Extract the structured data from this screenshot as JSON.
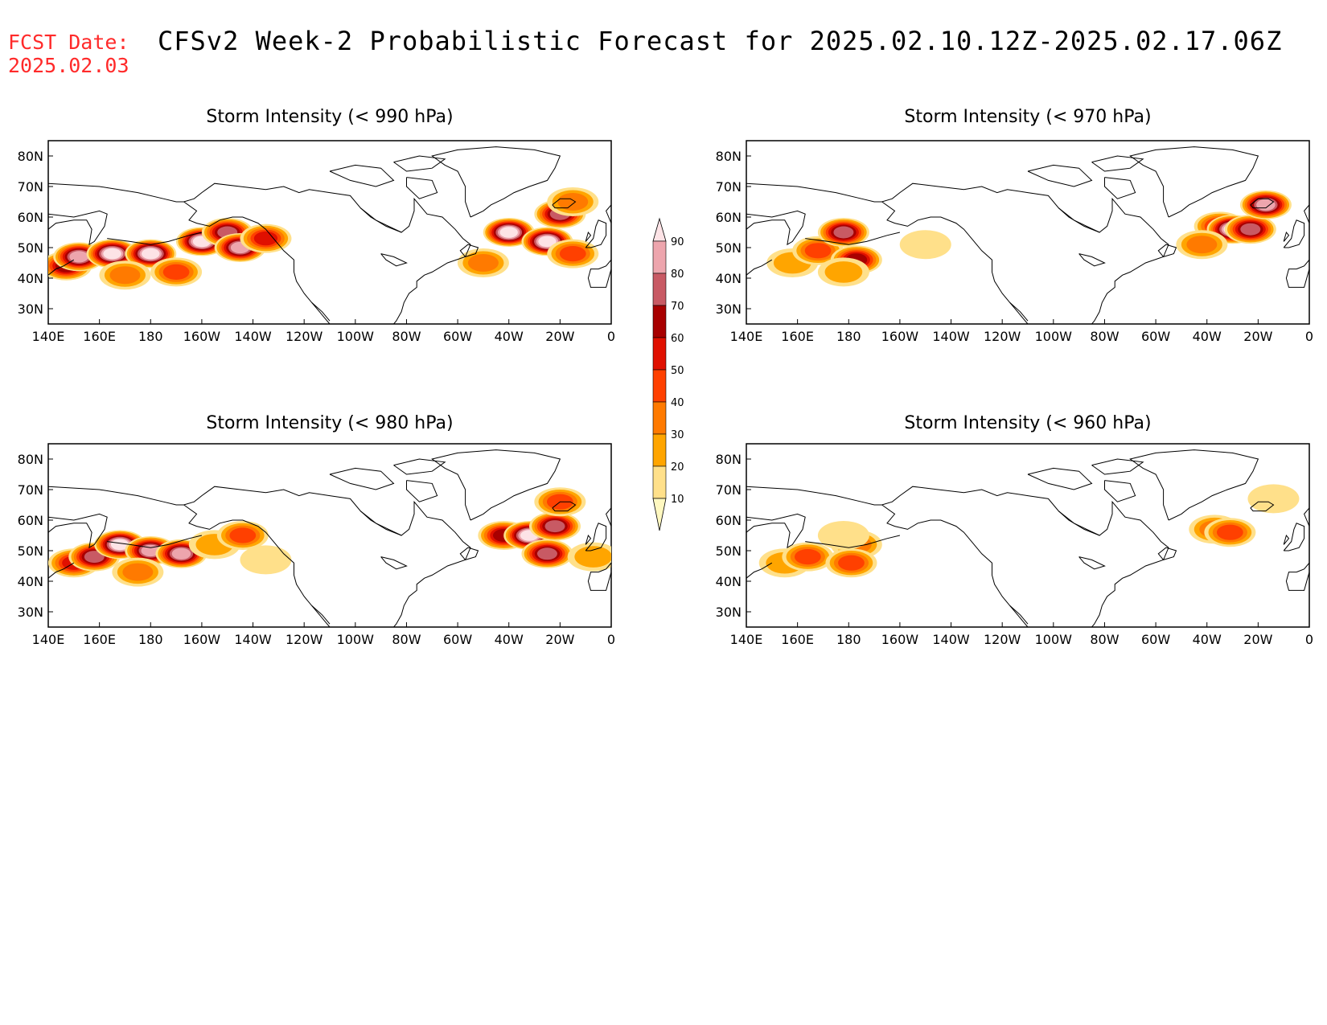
{
  "header": {
    "fcst_label": "FCST Date:",
    "fcst_date": "2025.02.03",
    "title": "CFSv2 Week-2 Probabilistic Forecast for 2025.02.10.12Z-2025.02.17.06Z"
  },
  "lon_ticks": [
    "140E",
    "160E",
    "180",
    "160W",
    "140W",
    "120W",
    "100W",
    "80W",
    "60W",
    "40W",
    "20W",
    "0"
  ],
  "lat_ticks": [
    "80N",
    "70N",
    "60N",
    "50N",
    "40N",
    "30N"
  ],
  "colorbar": {
    "levels": [
      10,
      20,
      30,
      40,
      50,
      60,
      70,
      80,
      90
    ],
    "colors": [
      "#fff8c0",
      "#ffe08a",
      "#ffa500",
      "#ff7a00",
      "#ff4000",
      "#e01000",
      "#a80000",
      "#c85a64",
      "#eda5ad",
      "#fde3e6"
    ]
  },
  "chart_data": [
    {
      "type": "heatmap",
      "title": "Storm Intensity (< 990 hPa)",
      "x_unit": "degrees longitude east (140-360)",
      "y_unit": "degrees latitude",
      "xlim": [
        140,
        360
      ],
      "ylim": [
        25,
        85
      ],
      "values": [
        {
          "lon": 147,
          "lat": 44,
          "value": 60
        },
        {
          "lon": 152,
          "lat": 47,
          "value": 85
        },
        {
          "lon": 165,
          "lat": 48,
          "value": 90
        },
        {
          "lon": 180,
          "lat": 48,
          "value": 90
        },
        {
          "lon": 170,
          "lat": 41,
          "value": 35
        },
        {
          "lon": 190,
          "lat": 42,
          "value": 40
        },
        {
          "lon": 200,
          "lat": 52,
          "value": 90
        },
        {
          "lon": 210,
          "lat": 55,
          "value": 75
        },
        {
          "lon": 215,
          "lat": 50,
          "value": 85
        },
        {
          "lon": 225,
          "lat": 53,
          "value": 50
        },
        {
          "lon": 320,
          "lat": 55,
          "value": 90
        },
        {
          "lon": 335,
          "lat": 52,
          "value": 90
        },
        {
          "lon": 340,
          "lat": 61,
          "value": 70
        },
        {
          "lon": 345,
          "lat": 48,
          "value": 45
        },
        {
          "lon": 310,
          "lat": 45,
          "value": 35
        },
        {
          "lon": 345,
          "lat": 65,
          "value": 30
        }
      ]
    },
    {
      "type": "heatmap",
      "title": "Storm Intensity (< 970 hPa)",
      "x_unit": "degrees longitude east (140-360)",
      "y_unit": "degrees latitude",
      "xlim": [
        140,
        360
      ],
      "ylim": [
        25,
        85
      ],
      "values": [
        {
          "lon": 158,
          "lat": 45,
          "value": 25
        },
        {
          "lon": 168,
          "lat": 49,
          "value": 45
        },
        {
          "lon": 178,
          "lat": 55,
          "value": 70
        },
        {
          "lon": 183,
          "lat": 46,
          "value": 60
        },
        {
          "lon": 178,
          "lat": 42,
          "value": 20
        },
        {
          "lon": 210,
          "lat": 51,
          "value": 15
        },
        {
          "lon": 325,
          "lat": 57,
          "value": 55
        },
        {
          "lon": 330,
          "lat": 56,
          "value": 90
        },
        {
          "lon": 337,
          "lat": 56,
          "value": 75
        },
        {
          "lon": 343,
          "lat": 64,
          "value": 80
        },
        {
          "lon": 318,
          "lat": 51,
          "value": 30
        }
      ]
    },
    {
      "type": "heatmap",
      "title": "Storm Intensity (< 980 hPa)",
      "x_unit": "degrees longitude east (140-360)",
      "y_unit": "degrees latitude",
      "xlim": [
        140,
        360
      ],
      "ylim": [
        25,
        85
      ],
      "values": [
        {
          "lon": 150,
          "lat": 46,
          "value": 50
        },
        {
          "lon": 158,
          "lat": 48,
          "value": 70
        },
        {
          "lon": 168,
          "lat": 52,
          "value": 90
        },
        {
          "lon": 180,
          "lat": 50,
          "value": 85
        },
        {
          "lon": 192,
          "lat": 49,
          "value": 80
        },
        {
          "lon": 175,
          "lat": 43,
          "value": 30
        },
        {
          "lon": 205,
          "lat": 52,
          "value": 25
        },
        {
          "lon": 216,
          "lat": 55,
          "value": 45
        },
        {
          "lon": 225,
          "lat": 47,
          "value": 15
        },
        {
          "lon": 318,
          "lat": 55,
          "value": 60
        },
        {
          "lon": 328,
          "lat": 55,
          "value": 90
        },
        {
          "lon": 338,
          "lat": 58,
          "value": 75
        },
        {
          "lon": 335,
          "lat": 49,
          "value": 70
        },
        {
          "lon": 353,
          "lat": 48,
          "value": 25
        },
        {
          "lon": 340,
          "lat": 66,
          "value": 40
        }
      ]
    },
    {
      "type": "heatmap",
      "title": "Storm Intensity (< 960 hPa)",
      "x_unit": "degrees longitude east (140-360)",
      "y_unit": "degrees latitude",
      "xlim": [
        140,
        360
      ],
      "ylim": [
        25,
        85
      ],
      "values": [
        {
          "lon": 155,
          "lat": 46,
          "value": 20
        },
        {
          "lon": 164,
          "lat": 48,
          "value": 40
        },
        {
          "lon": 183,
          "lat": 52,
          "value": 30
        },
        {
          "lon": 181,
          "lat": 46,
          "value": 45
        },
        {
          "lon": 178,
          "lat": 55,
          "value": 15
        },
        {
          "lon": 323,
          "lat": 57,
          "value": 30
        },
        {
          "lon": 329,
          "lat": 56,
          "value": 40
        },
        {
          "lon": 346,
          "lat": 67,
          "value": 15
        }
      ]
    }
  ]
}
